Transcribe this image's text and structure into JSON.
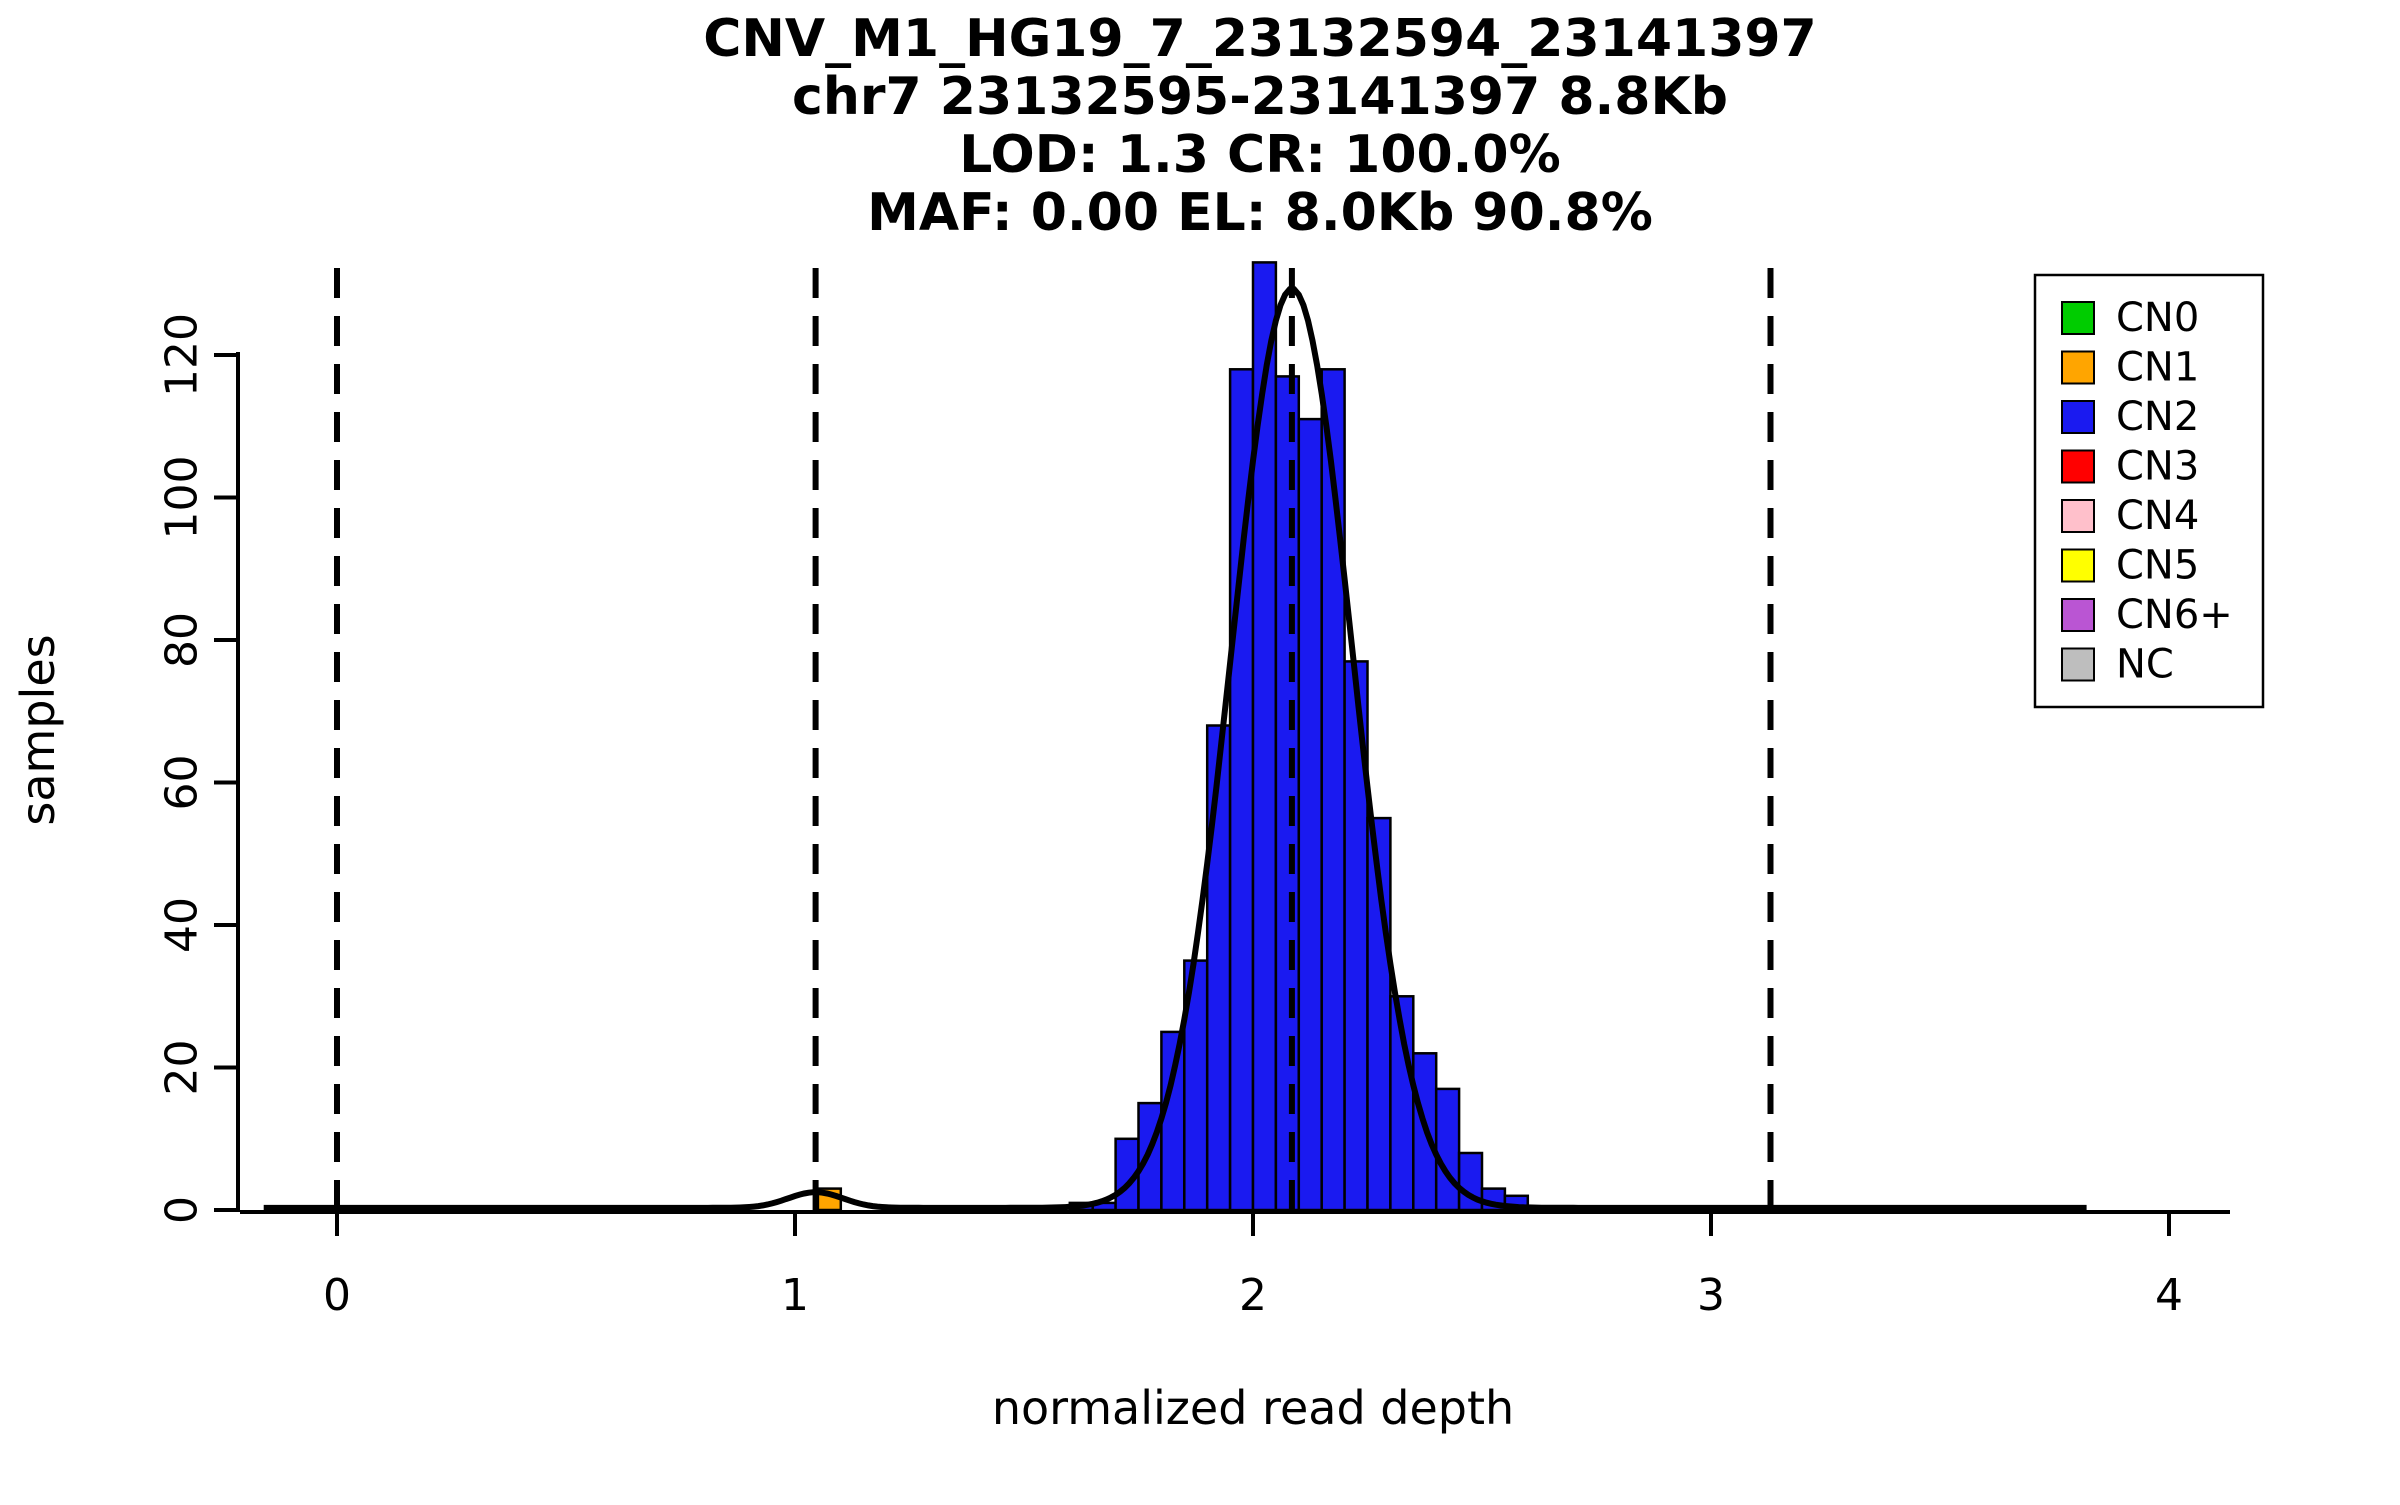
{
  "chart_data": {
    "type": "histogram",
    "title_lines": [
      "CNV_M1_HG19_7_23132594_23141397",
      "chr7 23132595-23141397 8.8Kb",
      "LOD: 1.3 CR: 100.0%",
      "MAF: 0.00 EL: 8.0Kb 90.8%"
    ],
    "xlabel": "normalized read depth",
    "ylabel": "samples",
    "xlim": [
      -0.2,
      4.15
    ],
    "ylim": [
      0,
      133
    ],
    "x_ticks": [
      0,
      1,
      2,
      3,
      4
    ],
    "y_ticks": [
      0,
      20,
      40,
      60,
      80,
      100,
      120
    ],
    "bin_width": 0.05,
    "bars": [
      {
        "x": 1.05,
        "h": 3,
        "cn": "CN1"
      },
      {
        "x": 1.6,
        "h": 1,
        "cn": "CN2"
      },
      {
        "x": 1.65,
        "h": 1,
        "cn": "CN2"
      },
      {
        "x": 1.7,
        "h": 10,
        "cn": "CN2"
      },
      {
        "x": 1.75,
        "h": 15,
        "cn": "CN2"
      },
      {
        "x": 1.8,
        "h": 25,
        "cn": "CN2"
      },
      {
        "x": 1.85,
        "h": 35,
        "cn": "CN2"
      },
      {
        "x": 1.9,
        "h": 68,
        "cn": "CN2"
      },
      {
        "x": 1.95,
        "h": 118,
        "cn": "CN2"
      },
      {
        "x": 2.0,
        "h": 133,
        "cn": "CN2"
      },
      {
        "x": 2.05,
        "h": 117,
        "cn": "CN2"
      },
      {
        "x": 2.1,
        "h": 111,
        "cn": "CN2"
      },
      {
        "x": 2.15,
        "h": 118,
        "cn": "CN2"
      },
      {
        "x": 2.2,
        "h": 77,
        "cn": "CN2"
      },
      {
        "x": 2.25,
        "h": 55,
        "cn": "CN2"
      },
      {
        "x": 2.3,
        "h": 30,
        "cn": "CN2"
      },
      {
        "x": 2.35,
        "h": 22,
        "cn": "CN2"
      },
      {
        "x": 2.4,
        "h": 17,
        "cn": "CN2"
      },
      {
        "x": 2.45,
        "h": 8,
        "cn": "CN2"
      },
      {
        "x": 2.5,
        "h": 3,
        "cn": "CN2"
      },
      {
        "x": 2.55,
        "h": 2,
        "cn": "CN2"
      }
    ],
    "dashed_lines_x": [
      0,
      1.045,
      2.085,
      3.13
    ],
    "density_curve": {
      "baseline": 0.3,
      "x_range": [
        -0.16,
        3.82
      ],
      "components": [
        {
          "mean": 1.045,
          "amp": 2.2,
          "sd": 0.06
        },
        {
          "mean": 2.085,
          "amp": 129,
          "sd": 0.132
        }
      ]
    },
    "legend": [
      {
        "label": "CN0",
        "color": "#00CC00"
      },
      {
        "label": "CN1",
        "color": "#FFA500"
      },
      {
        "label": "CN2",
        "color": "#1A1AF0"
      },
      {
        "label": "CN3",
        "color": "#FF0000"
      },
      {
        "label": "CN4",
        "color": "#FFC0CB"
      },
      {
        "label": "CN5",
        "color": "#FFFF00"
      },
      {
        "label": "CN6+",
        "color": "#BA55D3"
      },
      {
        "label": "NC",
        "color": "#BEBEBE"
      }
    ],
    "axis_color": "#000000",
    "curve_color": "#000000",
    "background": "#FFFFFF"
  }
}
